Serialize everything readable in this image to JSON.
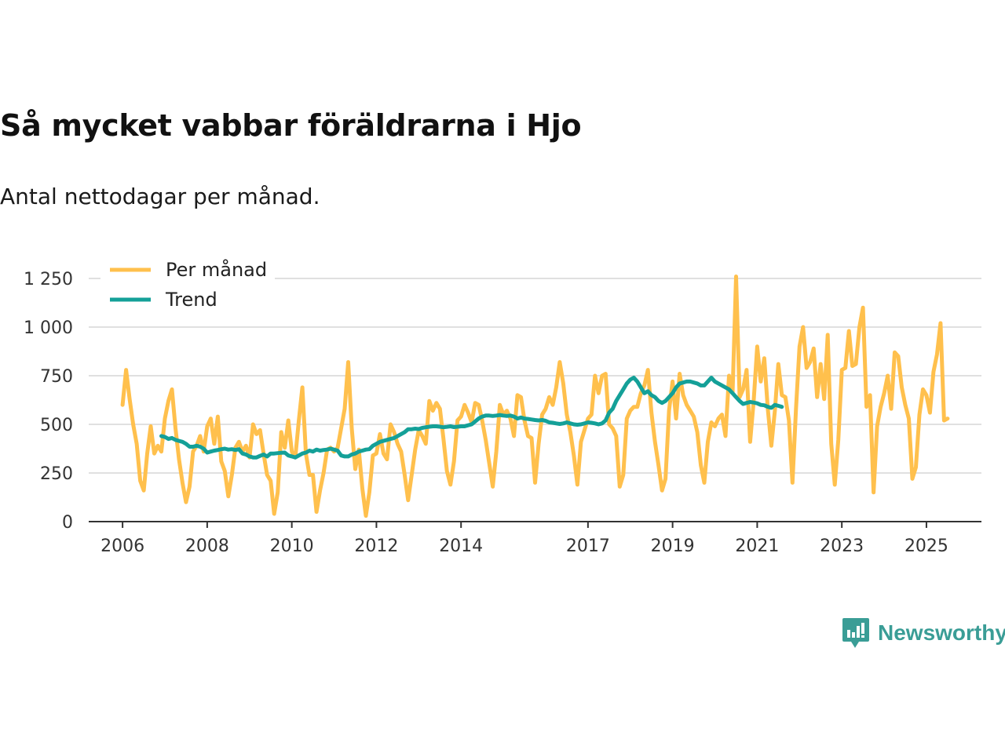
{
  "title": "Så mycket vabbar föräldrarna i Hjo",
  "subtitle": "Antal nettodagar per månad.",
  "brand": {
    "name": "Newsworthy",
    "icon": "newsworthy-logo-icon"
  },
  "colors": {
    "monthly": "#ffc04d",
    "trend": "#14a098",
    "grid": "#e0e0e0",
    "axis": "#333333",
    "brand": "#3a9d96"
  },
  "chart_data": {
    "type": "line",
    "title": "Så mycket vabbar föräldrarna i Hjo",
    "subtitle": "Antal nettodagar per månad.",
    "x_ticks": [
      "2006",
      "2008",
      "2010",
      "2012",
      "2014",
      "2017",
      "2019",
      "2021",
      "2023",
      "2025"
    ],
    "x_tick_values": [
      2006,
      2008,
      2010,
      2012,
      2014,
      2017,
      2019,
      2021,
      2023,
      2025
    ],
    "xlim": [
      2005.2,
      2026.3
    ],
    "y_ticks": [
      "0",
      "250",
      "500",
      "750",
      "1 000",
      "1 250"
    ],
    "y_tick_values": [
      0,
      250,
      500,
      750,
      1000,
      1250
    ],
    "ylim": [
      0,
      1250
    ],
    "grid": true,
    "legend_position": "top-left",
    "series": [
      {
        "name": "Per månad",
        "color": "#ffc04d",
        "start": "2006-01",
        "values": [
          600,
          780,
          630,
          500,
          400,
          210,
          160,
          350,
          490,
          350,
          390,
          360,
          530,
          620,
          680,
          480,
          320,
          200,
          100,
          180,
          360,
          390,
          440,
          360,
          490,
          530,
          400,
          540,
          310,
          260,
          130,
          240,
          380,
          410,
          360,
          390,
          330,
          500,
          450,
          470,
          350,
          240,
          210,
          40,
          150,
          460,
          380,
          520,
          360,
          330,
          520,
          690,
          350,
          240,
          240,
          50,
          160,
          250,
          370,
          380,
          360,
          380,
          480,
          580,
          820,
          480,
          270,
          370,
          170,
          30,
          150,
          340,
          350,
          450,
          350,
          320,
          500,
          460,
          400,
          360,
          240,
          110,
          240,
          370,
          470,
          440,
          400,
          620,
          570,
          610,
          580,
          430,
          260,
          190,
          310,
          520,
          540,
          600,
          560,
          510,
          610,
          600,
          520,
          420,
          300,
          180,
          360,
          600,
          550,
          570,
          530,
          440,
          650,
          640,
          520,
          440,
          430,
          200,
          400,
          550,
          580,
          640,
          600,
          690,
          820,
          710,
          550,
          460,
          340,
          190,
          410,
          470,
          530,
          550,
          750,
          660,
          750,
          760,
          500,
          480,
          440,
          180,
          240,
          530,
          570,
          590,
          590,
          660,
          700,
          780,
          560,
          410,
          290,
          160,
          220,
          570,
          720,
          530,
          760,
          650,
          600,
          570,
          540,
          460,
          290,
          200,
          410,
          510,
          490,
          530,
          550,
          440,
          750,
          660,
          1260,
          640,
          680,
          780,
          410,
          620,
          900,
          720,
          840,
          580,
          390,
          570,
          810,
          650,
          640,
          520,
          200,
          580,
          900,
          1000,
          790,
          820,
          890,
          640,
          810,
          630,
          960,
          400,
          190,
          420,
          780,
          790,
          980,
          800,
          810,
          1000,
          1100,
          590,
          650,
          150,
          490,
          590,
          660,
          750,
          580,
          870,
          850,
          690,
          600,
          530,
          220,
          280,
          550,
          680,
          650,
          560,
          770,
          860,
          1020,
          520,
          530
        ]
      },
      {
        "name": "Trend",
        "color": "#14a098",
        "start": "2006-12",
        "values": [
          440,
          435,
          425,
          430,
          420,
          415,
          410,
          400,
          385,
          385,
          390,
          385,
          375,
          355,
          360,
          365,
          368,
          372,
          375,
          370,
          372,
          368,
          372,
          350,
          345,
          335,
          330,
          330,
          338,
          345,
          335,
          350,
          350,
          352,
          354,
          355,
          340,
          335,
          330,
          340,
          350,
          355,
          365,
          360,
          370,
          365,
          368,
          370,
          375,
          370,
          365,
          340,
          335,
          335,
          345,
          350,
          360,
          365,
          370,
          372,
          390,
          400,
          410,
          415,
          420,
          425,
          430,
          440,
          450,
          460,
          475,
          475,
          478,
          476,
          482,
          485,
          488,
          490,
          490,
          488,
          485,
          487,
          490,
          486,
          488,
          490,
          490,
          495,
          500,
          515,
          530,
          540,
          545,
          545,
          543,
          545,
          548,
          545,
          543,
          545,
          540,
          530,
          535,
          530,
          528,
          525,
          522,
          520,
          522,
          518,
          510,
          508,
          505,
          502,
          505,
          510,
          505,
          500,
          498,
          500,
          505,
          510,
          508,
          505,
          500,
          505,
          520,
          560,
          580,
          620,
          650,
          680,
          710,
          730,
          740,
          720,
          690,
          660,
          670,
          650,
          640,
          620,
          610,
          620,
          640,
          660,
          690,
          710,
          715,
          720,
          720,
          715,
          710,
          700,
          700,
          720,
          740,
          720,
          710,
          700,
          690,
          680,
          660,
          640,
          620,
          605,
          610,
          615,
          612,
          608,
          600,
          598,
          590,
          585,
          600,
          595,
          590
        ]
      }
    ]
  }
}
